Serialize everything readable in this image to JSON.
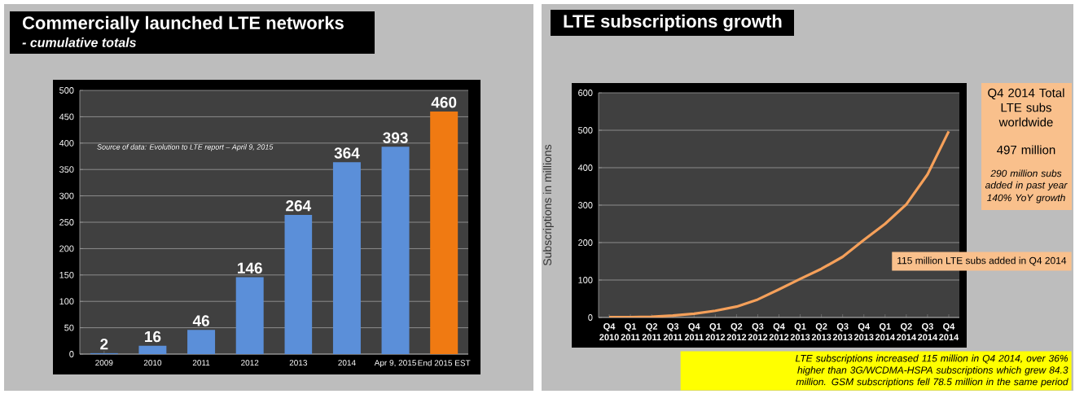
{
  "chart_data": [
    {
      "type": "bar",
      "title": "Commercially launched LTE networks",
      "subtitle": "- cumulative totals",
      "categories": [
        "2009",
        "2010",
        "2011",
        "2012",
        "2013",
        "2014",
        "Apr 9, 2015",
        "End 2015 EST"
      ],
      "values": [
        2,
        16,
        46,
        146,
        264,
        364,
        393,
        460
      ],
      "colors": [
        "#5b8fd9",
        "#5b8fd9",
        "#5b8fd9",
        "#5b8fd9",
        "#5b8fd9",
        "#5b8fd9",
        "#5b8fd9",
        "#f07a12"
      ],
      "data_labels": true,
      "ylim": [
        0,
        500
      ],
      "yticks": [
        0,
        50,
        100,
        150,
        200,
        250,
        300,
        350,
        400,
        450,
        500
      ],
      "grid": "y",
      "annotations": [
        "Source of data: Evolution to LTE report – April 9, 2015"
      ]
    },
    {
      "type": "line",
      "title": "LTE subscriptions growth",
      "ylabel": "Subscriptions in millions",
      "categories": [
        "Q4 2010",
        "Q1 2011",
        "Q2 2011",
        "Q3 2011",
        "Q4 2011",
        "Q1 2012",
        "Q2 2012",
        "Q3 2012",
        "Q4 2012",
        "Q1 2013",
        "Q2 2013",
        "Q3 2013",
        "Q4 2013",
        "Q1 2014",
        "Q2 2014",
        "Q3 2014",
        "Q4 2014"
      ],
      "values": [
        1,
        1,
        2,
        5,
        10,
        18,
        29,
        48,
        75,
        103,
        130,
        162,
        207,
        250,
        302,
        382,
        497
      ],
      "color": "#f5a05a",
      "ylim": [
        0,
        600
      ],
      "yticks": [
        0,
        100,
        200,
        300,
        400,
        500,
        600
      ],
      "grid": "y",
      "annotations": [
        "Q4 2014 Total LTE subs worldwide",
        "497 million",
        "290 million subs added in past year",
        "140% YoY growth",
        "115 million LTE subs added in Q4 2014",
        "LTE subscriptions increased 115 million in Q4 2014, over 36% higher than 3G/WCDMA-HSPA subscriptions which grew 84.3 million. GSM subscriptions fell 78.5 million in the same period"
      ]
    }
  ]
}
